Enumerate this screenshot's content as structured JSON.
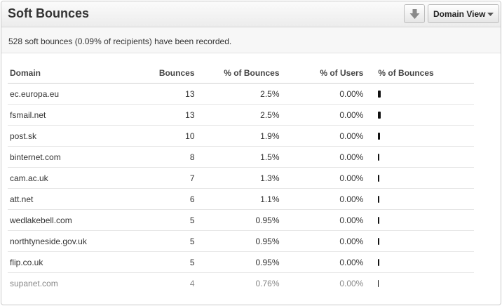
{
  "header": {
    "title": "Soft Bounces",
    "download_icon": "download-arrow-icon",
    "view_label": "Domain View",
    "view_icon": "chevron-down-icon"
  },
  "summary": "528 soft bounces (0.09% of recipients) have been recorded.",
  "table": {
    "columns": [
      "Domain",
      "Bounces",
      "% of Bounces",
      "% of Users",
      "% of Bounces"
    ],
    "rows": [
      {
        "domain": "ec.europa.eu",
        "bounces": "13",
        "pct_bounces": "2.5%",
        "pct_users": "0.00%",
        "bar_value": 2.5
      },
      {
        "domain": "fsmail.net",
        "bounces": "13",
        "pct_bounces": "2.5%",
        "pct_users": "0.00%",
        "bar_value": 2.5
      },
      {
        "domain": "post.sk",
        "bounces": "10",
        "pct_bounces": "1.9%",
        "pct_users": "0.00%",
        "bar_value": 1.9
      },
      {
        "domain": "binternet.com",
        "bounces": "8",
        "pct_bounces": "1.5%",
        "pct_users": "0.00%",
        "bar_value": 1.5
      },
      {
        "domain": "cam.ac.uk",
        "bounces": "7",
        "pct_bounces": "1.3%",
        "pct_users": "0.00%",
        "bar_value": 1.3
      },
      {
        "domain": "att.net",
        "bounces": "6",
        "pct_bounces": "1.1%",
        "pct_users": "0.00%",
        "bar_value": 1.1
      },
      {
        "domain": "wedlakebell.com",
        "bounces": "5",
        "pct_bounces": "0.95%",
        "pct_users": "0.00%",
        "bar_value": 0.95
      },
      {
        "domain": "northtyneside.gov.uk",
        "bounces": "5",
        "pct_bounces": "0.95%",
        "pct_users": "0.00%",
        "bar_value": 0.95
      },
      {
        "domain": "flip.co.uk",
        "bounces": "5",
        "pct_bounces": "0.95%",
        "pct_users": "0.00%",
        "bar_value": 0.95
      },
      {
        "domain": "supanet.com",
        "bounces": "4",
        "pct_bounces": "0.76%",
        "pct_users": "0.00%",
        "bar_value": 0.76
      }
    ]
  }
}
